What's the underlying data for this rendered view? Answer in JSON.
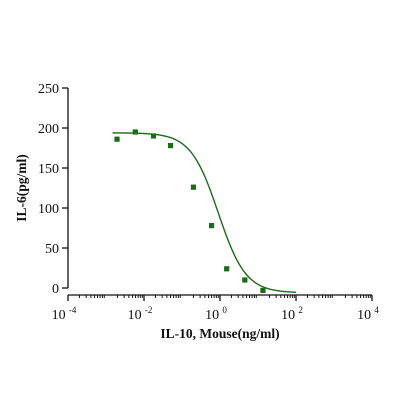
{
  "chart_data": {
    "type": "scatter",
    "xlabel": "IL-10, Mouse(ng/ml)",
    "ylabel": "IL-6(pg/ml)",
    "x_scale": "log10",
    "xlim": [
      0.0001,
      10000
    ],
    "ylim": [
      0,
      250
    ],
    "x_ticks": [
      {
        "value": 0.0001,
        "base": "10",
        "exp": "-4"
      },
      {
        "value": 0.01,
        "base": "10",
        "exp": "-2"
      },
      {
        "value": 1,
        "base": "10",
        "exp": "0"
      },
      {
        "value": 100,
        "base": "10",
        "exp": "2"
      },
      {
        "value": 10000,
        "base": "10",
        "exp": "4"
      }
    ],
    "y_ticks": [
      0,
      50,
      100,
      150,
      200,
      250
    ],
    "grid": false,
    "colors": {
      "marker": "#1a6b1a",
      "curve": "#1a6b1a",
      "axis": "#111111"
    },
    "series": [
      {
        "marker": "square",
        "x": [
          0.00195,
          0.0059,
          0.0178,
          0.05,
          0.2,
          0.6,
          1.5,
          4.5,
          13.5
        ],
        "y": [
          186,
          195,
          190,
          178,
          126,
          78,
          24,
          10,
          -3
        ]
      }
    ],
    "fit_curve": {
      "type": "four-parameter logistic",
      "top": 194,
      "bottom": -6,
      "ec50": 0.9,
      "hill": 1.2,
      "x_range": [
        0.0015,
        100
      ]
    }
  }
}
